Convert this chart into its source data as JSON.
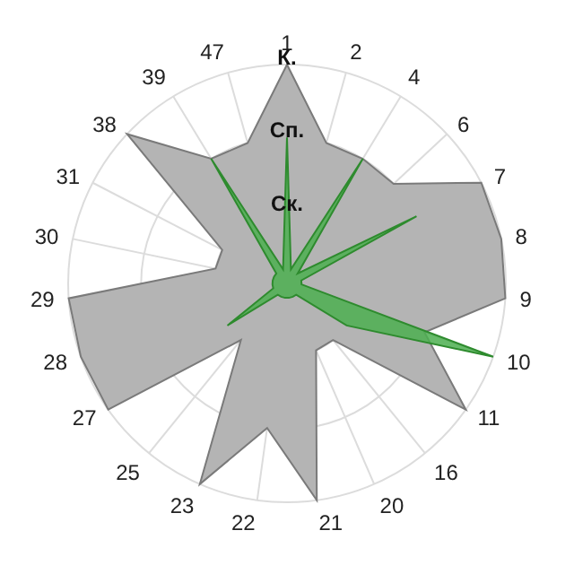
{
  "chart_data": {
    "type": "radar",
    "categories": [
      "1",
      "2",
      "4",
      "6",
      "7",
      "8",
      "9",
      "10",
      "11",
      "16",
      "20",
      "21",
      "22",
      "23",
      "25",
      "27",
      "28",
      "29",
      "30",
      "31",
      "38",
      "39",
      "47"
    ],
    "series": [
      {
        "color": "#b4b4b4",
        "values": [
          3,
          2,
          2,
          2,
          3,
          3,
          3,
          2,
          3,
          1,
          1,
          3,
          2,
          3,
          1,
          3,
          3,
          3,
          1,
          1,
          3,
          2,
          2
        ]
      },
      {
        "color": "#4caf50",
        "values": [
          2,
          0.2,
          2,
          0.2,
          2,
          0.2,
          0.2,
          3,
          1,
          0.2,
          0.2,
          0.2,
          0.2,
          0.2,
          0.2,
          1,
          0.2,
          0.2,
          0.2,
          0.2,
          0.2,
          2,
          0.2
        ]
      }
    ],
    "ylim": [
      0,
      3
    ],
    "yticks": [
      {
        "value": 1,
        "label": "Ск."
      },
      {
        "value": 2,
        "label": "Сп."
      },
      {
        "value": 3,
        "label": "К."
      }
    ],
    "grid": true
  }
}
